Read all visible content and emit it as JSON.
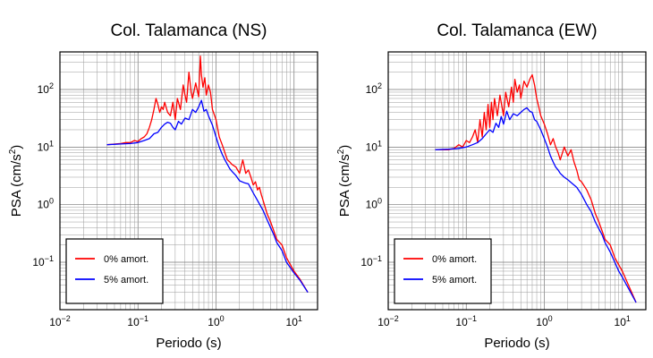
{
  "chart_data": [
    {
      "type": "line",
      "title": "Col. Talamanca (NS)",
      "xlabel": "Periodo (s)",
      "ylabel_main": "PSA (cm/s",
      "ylabel_sup": "2",
      "ylabel_close": ")",
      "x_scale": "log",
      "y_scale": "log",
      "xlim": [
        0.01,
        20
      ],
      "ylim": [
        0.015,
        450
      ],
      "grid": true,
      "legend_position": "bottom-left",
      "x_ticks": [
        {
          "base": "10",
          "exp": "−2",
          "value": 0.01
        },
        {
          "base": "10",
          "exp": "−1",
          "value": 0.1
        },
        {
          "base": "10",
          "exp": "0",
          "value": 1
        },
        {
          "base": "10",
          "exp": "1",
          "value": 10
        }
      ],
      "y_ticks": [
        {
          "base": "10",
          "exp": "−1",
          "value": 0.1
        },
        {
          "base": "10",
          "exp": "0",
          "value": 1
        },
        {
          "base": "10",
          "exp": "1",
          "value": 10
        },
        {
          "base": "10",
          "exp": "2",
          "value": 100
        }
      ],
      "series": [
        {
          "name": "0% amort.",
          "color": "#ff0000",
          "x": [
            0.04,
            0.06,
            0.07,
            0.08,
            0.09,
            0.1,
            0.11,
            0.12,
            0.13,
            0.14,
            0.15,
            0.16,
            0.17,
            0.18,
            0.19,
            0.2,
            0.21,
            0.22,
            0.24,
            0.26,
            0.28,
            0.3,
            0.32,
            0.35,
            0.38,
            0.4,
            0.42,
            0.45,
            0.48,
            0.5,
            0.55,
            0.6,
            0.63,
            0.65,
            0.68,
            0.72,
            0.75,
            0.8,
            0.85,
            0.9,
            1.0,
            1.1,
            1.2,
            1.3,
            1.4,
            1.5,
            1.6,
            1.8,
            2.0,
            2.2,
            2.4,
            2.6,
            2.8,
            3.0,
            3.2,
            3.4,
            3.6,
            3.8,
            4.0,
            4.5,
            5.0,
            5.5,
            6.0,
            7.0,
            8.0,
            9.0,
            10,
            12,
            15
          ],
          "y": [
            11,
            11.5,
            12,
            12,
            13,
            12.5,
            14,
            15,
            17,
            22,
            30,
            45,
            70,
            55,
            40,
            50,
            45,
            60,
            40,
            35,
            60,
            30,
            70,
            45,
            120,
            80,
            60,
            200,
            90,
            70,
            130,
            75,
            380,
            180,
            110,
            160,
            80,
            120,
            90,
            45,
            30,
            15,
            11,
            8,
            6,
            5.5,
            5,
            4.5,
            3.5,
            6,
            3.5,
            4,
            3,
            2.2,
            2.5,
            1.8,
            2,
            1.5,
            1.2,
            0.7,
            0.5,
            0.35,
            0.25,
            0.2,
            0.12,
            0.09,
            0.07,
            0.05,
            0.03
          ]
        },
        {
          "name": "5% amort.",
          "color": "#0000ff",
          "x": [
            0.04,
            0.06,
            0.08,
            0.1,
            0.12,
            0.14,
            0.16,
            0.18,
            0.2,
            0.22,
            0.24,
            0.26,
            0.28,
            0.3,
            0.33,
            0.36,
            0.4,
            0.45,
            0.5,
            0.55,
            0.6,
            0.65,
            0.7,
            0.75,
            0.8,
            0.9,
            1.0,
            1.1,
            1.2,
            1.3,
            1.4,
            1.5,
            1.6,
            1.8,
            2.0,
            2.3,
            2.6,
            3.0,
            3.5,
            4.0,
            4.5,
            5.0,
            5.5,
            6.0,
            7.0,
            8.0,
            9.0,
            10,
            12,
            15
          ],
          "y": [
            11,
            11.3,
            11.5,
            12,
            13,
            14,
            17,
            18,
            22,
            25,
            27,
            26,
            22,
            20,
            28,
            25,
            32,
            30,
            45,
            40,
            50,
            65,
            42,
            45,
            35,
            24,
            15,
            10,
            7.5,
            6,
            5,
            4.2,
            3.8,
            3.2,
            2.6,
            2.4,
            2.3,
            1.6,
            1.1,
            0.8,
            0.55,
            0.4,
            0.3,
            0.22,
            0.16,
            0.1,
            0.08,
            0.065,
            0.048,
            0.03
          ]
        }
      ]
    },
    {
      "type": "line",
      "title": "Col. Talamanca (EW)",
      "xlabel": "Periodo (s)",
      "ylabel_main": "PSA (cm/s",
      "ylabel_sup": "2",
      "ylabel_close": ")",
      "x_scale": "log",
      "y_scale": "log",
      "xlim": [
        0.01,
        20
      ],
      "ylim": [
        0.015,
        450
      ],
      "grid": true,
      "legend_position": "bottom-left",
      "x_ticks": [
        {
          "base": "10",
          "exp": "−2",
          "value": 0.01
        },
        {
          "base": "10",
          "exp": "−1",
          "value": 0.1
        },
        {
          "base": "10",
          "exp": "0",
          "value": 1
        },
        {
          "base": "10",
          "exp": "1",
          "value": 10
        }
      ],
      "y_ticks": [
        {
          "base": "10",
          "exp": "−1",
          "value": 0.1
        },
        {
          "base": "10",
          "exp": "0",
          "value": 1
        },
        {
          "base": "10",
          "exp": "1",
          "value": 10
        },
        {
          "base": "10",
          "exp": "2",
          "value": 100
        }
      ],
      "series": [
        {
          "name": "0% amort.",
          "color": "#ff0000",
          "x": [
            0.04,
            0.06,
            0.07,
            0.08,
            0.09,
            0.1,
            0.11,
            0.12,
            0.13,
            0.14,
            0.15,
            0.16,
            0.17,
            0.18,
            0.19,
            0.2,
            0.21,
            0.22,
            0.23,
            0.25,
            0.27,
            0.3,
            0.32,
            0.35,
            0.38,
            0.4,
            0.42,
            0.45,
            0.48,
            0.5,
            0.55,
            0.6,
            0.65,
            0.7,
            0.75,
            0.8,
            0.85,
            0.9,
            1.0,
            1.1,
            1.2,
            1.3,
            1.4,
            1.5,
            1.6,
            1.8,
            2.0,
            2.2,
            2.4,
            2.6,
            2.8,
            3.0,
            3.5,
            4.0,
            4.5,
            5.0,
            5.5,
            6.0,
            7.0,
            8.0,
            9.0,
            10,
            12,
            15
          ],
          "y": [
            9,
            9,
            9.5,
            11,
            10,
            13,
            12,
            15,
            20,
            12,
            30,
            15,
            40,
            20,
            55,
            22,
            60,
            30,
            70,
            35,
            80,
            35,
            90,
            50,
            110,
            60,
            150,
            90,
            120,
            70,
            140,
            110,
            150,
            180,
            120,
            70,
            50,
            35,
            25,
            17,
            11,
            14,
            10,
            8,
            6,
            10,
            7,
            9,
            5.5,
            4,
            2.7,
            2.5,
            1.8,
            1.2,
            0.7,
            0.5,
            0.35,
            0.25,
            0.2,
            0.12,
            0.09,
            0.07,
            0.04,
            0.02
          ]
        },
        {
          "name": "5% amort.",
          "color": "#0000ff",
          "x": [
            0.04,
            0.06,
            0.08,
            0.1,
            0.12,
            0.14,
            0.16,
            0.18,
            0.2,
            0.22,
            0.24,
            0.26,
            0.28,
            0.3,
            0.33,
            0.36,
            0.4,
            0.45,
            0.5,
            0.55,
            0.6,
            0.65,
            0.7,
            0.75,
            0.8,
            0.9,
            1.0,
            1.1,
            1.2,
            1.3,
            1.4,
            1.5,
            1.6,
            1.8,
            2.0,
            2.3,
            2.6,
            3.0,
            3.5,
            4.0,
            4.5,
            5.0,
            5.5,
            6.0,
            7.0,
            8.0,
            9.0,
            10,
            12,
            15
          ],
          "y": [
            9,
            9.2,
            9.5,
            10,
            11,
            12,
            14,
            17,
            20,
            18,
            26,
            22,
            34,
            25,
            42,
            30,
            38,
            35,
            40,
            45,
            48,
            42,
            40,
            30,
            28,
            20,
            14,
            10,
            7,
            5.5,
            4.5,
            4,
            3.5,
            3,
            2.7,
            2.3,
            2,
            1.5,
            1,
            0.75,
            0.5,
            0.38,
            0.3,
            0.22,
            0.15,
            0.1,
            0.07,
            0.055,
            0.035,
            0.02
          ]
        }
      ]
    }
  ]
}
